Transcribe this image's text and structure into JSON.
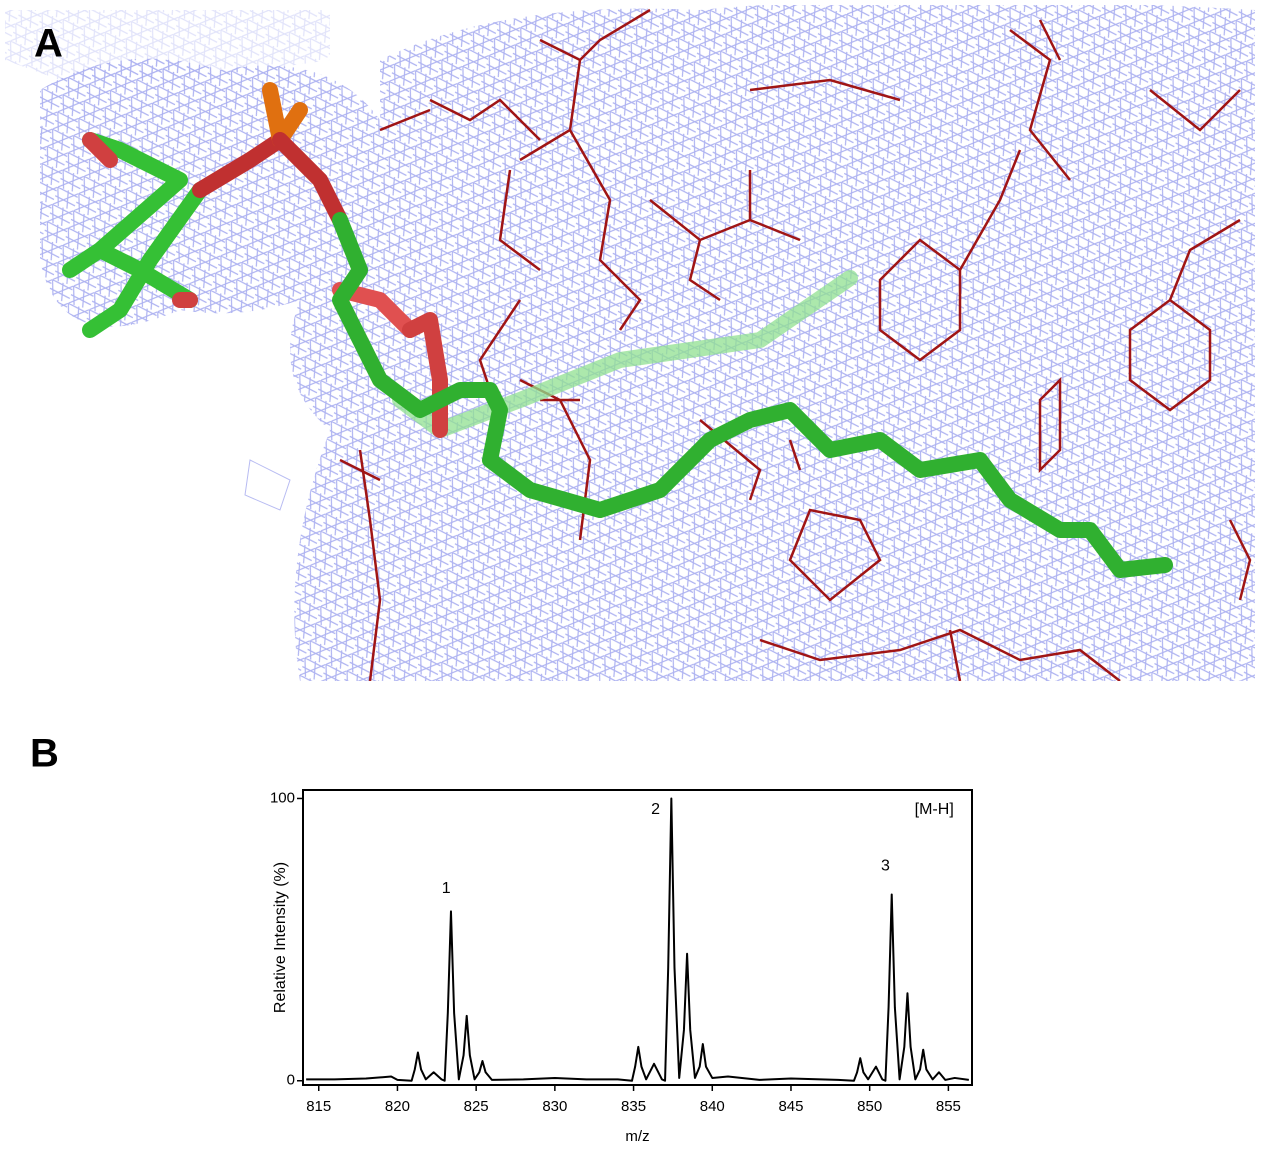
{
  "panels": [
    {
      "label": "A"
    },
    {
      "label": "B"
    }
  ],
  "chart_data": {
    "type": "line",
    "xlabel": "m/z",
    "ylabel": "Relative Intensity (%)",
    "xlim": [
      814,
      856.5
    ],
    "ylim": [
      -1.5,
      103
    ],
    "xticks": [
      815,
      820,
      825,
      830,
      835,
      840,
      845,
      850,
      855
    ],
    "yticks": [
      0,
      100
    ],
    "annotations": [
      {
        "text": "1",
        "x": 823.1,
        "y": 68
      },
      {
        "text": "2",
        "x": 836.4,
        "y": 96
      },
      {
        "text": "3",
        "x": 851.0,
        "y": 76
      },
      {
        "text": "[M-H]",
        "x": 854.1,
        "y": 96
      }
    ],
    "series": [
      {
        "color": "#000000",
        "x": [
          814.2,
          816,
          818,
          819.6,
          820,
          820.9,
          821.1,
          821.3,
          821.5,
          821.8,
          822.3,
          822.8,
          823.0,
          823.2,
          823.4,
          823.6,
          823.9,
          824.2,
          824.4,
          824.6,
          824.9,
          825.2,
          825.4,
          825.6,
          826,
          828,
          830,
          832,
          834,
          834.9,
          835.1,
          835.3,
          835.5,
          835.8,
          836.3,
          836.8,
          837.0,
          837.2,
          837.4,
          837.6,
          837.9,
          838.2,
          838.4,
          838.6,
          838.9,
          839.2,
          839.4,
          839.6,
          840,
          841,
          843,
          845,
          848,
          849.0,
          849.2,
          849.4,
          849.6,
          849.9,
          850.4,
          850.8,
          851.0,
          851.2,
          851.4,
          851.6,
          851.9,
          852.2,
          852.4,
          852.6,
          852.9,
          853.2,
          853.4,
          853.6,
          854,
          854.4,
          854.8,
          855.4,
          856.3
        ],
        "values": [
          0.5,
          0.5,
          0.8,
          1.5,
          0.3,
          0,
          4,
          10,
          4,
          0.5,
          3,
          0.5,
          0,
          24,
          60,
          24,
          0.5,
          9,
          23,
          9,
          0.5,
          3,
          7,
          3,
          0.3,
          0.5,
          1,
          0.5,
          0.5,
          0,
          5,
          12,
          5,
          0.5,
          6,
          0.5,
          0,
          40,
          100,
          40,
          1,
          18,
          45,
          18,
          1,
          5,
          13,
          5,
          1,
          1.5,
          0.3,
          0.8,
          0.3,
          0,
          3,
          8,
          3,
          0.5,
          5,
          0.5,
          0,
          26,
          66,
          26,
          0.5,
          12,
          31,
          12,
          0.5,
          4,
          11,
          4,
          0.5,
          3,
          0.3,
          1,
          0.3
        ]
      }
    ]
  }
}
